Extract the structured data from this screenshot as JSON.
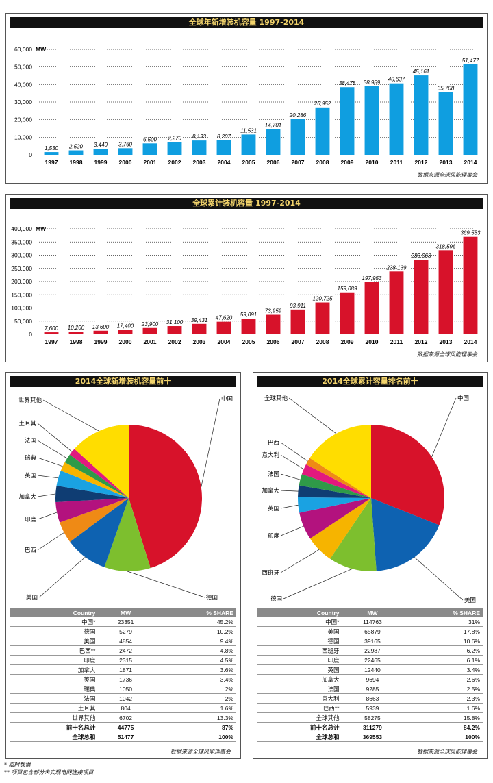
{
  "chart_data": [
    {
      "type": "bar",
      "title": "全球年新增装机容量 1997-2014",
      "ylabel": "MW",
      "ylim": [
        0,
        60000
      ],
      "yticks": [
        "0",
        "10,000",
        "20,000",
        "30,000",
        "40,000",
        "50,000",
        "60,000"
      ],
      "categories": [
        "1997",
        "1998",
        "1999",
        "2000",
        "2001",
        "2002",
        "2003",
        "2004",
        "2005",
        "2006",
        "2007",
        "2008",
        "2009",
        "2010",
        "2011",
        "2012",
        "2013",
        "2014"
      ],
      "values": [
        1530,
        2520,
        3440,
        3760,
        6500,
        7270,
        8133,
        8207,
        11531,
        14701,
        20286,
        26952,
        38478,
        38989,
        40637,
        45161,
        35708,
        51477
      ],
      "labels": [
        "1,530",
        "2,520",
        "3,440",
        "3,760",
        "6,500",
        "7,270",
        "8,133",
        "8,207",
        "11,531",
        "14,701",
        "20,286",
        "26,952",
        "38,478",
        "38,989",
        "40,637",
        "45,161",
        "35,708",
        "51,477"
      ],
      "color": "#0f9ee0",
      "grid": true,
      "source": "数据来源全球风能理事会"
    },
    {
      "type": "bar",
      "title": "全球累计装机容量 1997-2014",
      "ylabel": "MW",
      "ylim": [
        0,
        400000
      ],
      "yticks": [
        "0",
        "50,000",
        "100,000",
        "150,000",
        "200,000",
        "250,000",
        "300,000",
        "350,000",
        "400,000"
      ],
      "categories": [
        "1997",
        "1998",
        "1999",
        "2000",
        "2001",
        "2002",
        "2003",
        "2004",
        "2005",
        "2006",
        "2007",
        "2008",
        "2009",
        "2010",
        "2011",
        "2012",
        "2013",
        "2014"
      ],
      "values": [
        7600,
        10200,
        13600,
        17400,
        23900,
        31100,
        39431,
        47620,
        59091,
        73959,
        93911,
        120725,
        159089,
        197953,
        238139,
        283068,
        318596,
        369553
      ],
      "labels": [
        "7,600",
        "10,200",
        "13,600",
        "17,400",
        "23,900",
        "31,100",
        "39,431",
        "47,620",
        "59,091",
        "73,959",
        "93,911",
        "120,725",
        "159,089",
        "197,953",
        "238,139",
        "283,068",
        "318,596",
        "369,553"
      ],
      "color": "#d7122a",
      "grid": true,
      "source": "数据来源全球风能理事会"
    },
    {
      "type": "pie",
      "title": "2014全球新增装机容量前十",
      "slices": [
        {
          "label": "中国",
          "value": 45.2,
          "color": "#d7122a"
        },
        {
          "label": "德国",
          "value": 10.2,
          "color": "#7dbf2e"
        },
        {
          "label": "美国",
          "value": 9.4,
          "color": "#0e62b1"
        },
        {
          "label": "巴西",
          "value": 4.8,
          "color": "#ef8a15"
        },
        {
          "label": "印度",
          "value": 4.5,
          "color": "#b3127e"
        },
        {
          "label": "加拿大",
          "value": 3.6,
          "color": "#0f3d73"
        },
        {
          "label": "英国",
          "value": 3.4,
          "color": "#1aa2e2"
        },
        {
          "label": "瑞典",
          "value": 2.0,
          "color": "#f6b400"
        },
        {
          "label": "法国",
          "value": 2.0,
          "color": "#2f9a48"
        },
        {
          "label": "土耳其",
          "value": 1.6,
          "color": "#e2197e"
        },
        {
          "label": "世界其他",
          "value": 13.3,
          "color": "#ffdd00"
        }
      ],
      "table": {
        "headers": [
          "Country",
          "MW",
          "% SHARE"
        ],
        "rows": [
          [
            "中国*",
            "23351",
            "45.2%"
          ],
          [
            "德国",
            "5279",
            "10.2%"
          ],
          [
            "美国",
            "4854",
            "9.4%"
          ],
          [
            "巴西**",
            "2472",
            "4.8%"
          ],
          [
            "印度",
            "2315",
            "4.5%"
          ],
          [
            "加拿大",
            "1871",
            "3.6%"
          ],
          [
            "英国",
            "1736",
            "3.4%"
          ],
          [
            "瑞典",
            "1050",
            "2%"
          ],
          [
            "法国",
            "1042",
            "2%"
          ],
          [
            "土耳其",
            "804",
            "1.6%"
          ],
          [
            "世界其他",
            "6702",
            "13.3%"
          ],
          [
            "前十名总计",
            "44775",
            "87%"
          ],
          [
            "全球总和",
            "51477",
            "100%"
          ]
        ]
      },
      "source": "数据来源全球风能理事会"
    },
    {
      "type": "pie",
      "title": "2014全球累计容量排名前十",
      "slices": [
        {
          "label": "中国",
          "value": 31.0,
          "color": "#d7122a"
        },
        {
          "label": "美国",
          "value": 17.8,
          "color": "#0e62b1"
        },
        {
          "label": "德国",
          "value": 10.6,
          "color": "#7dbf2e"
        },
        {
          "label": "西班牙",
          "value": 6.2,
          "color": "#f6b400"
        },
        {
          "label": "印度",
          "value": 6.1,
          "color": "#b3127e"
        },
        {
          "label": "英国",
          "value": 3.4,
          "color": "#1aa2e2"
        },
        {
          "label": "加拿大",
          "value": 2.6,
          "color": "#0f3d73"
        },
        {
          "label": "法国",
          "value": 2.5,
          "color": "#2f9a48"
        },
        {
          "label": "意大利",
          "value": 2.3,
          "color": "#e2197e"
        },
        {
          "label": "巴西",
          "value": 1.6,
          "color": "#ef8a15"
        },
        {
          "label": "全球其他",
          "value": 15.8,
          "color": "#ffdd00"
        }
      ],
      "table": {
        "headers": [
          "Country",
          "MW",
          "% SHARE"
        ],
        "rows": [
          [
            "中国*",
            "114763",
            "31%"
          ],
          [
            "美国",
            "65879",
            "17.8%"
          ],
          [
            "德国",
            "39165",
            "10.6%"
          ],
          [
            "西班牙",
            "22987",
            "6.2%"
          ],
          [
            "印度",
            "22465",
            "6.1%"
          ],
          [
            "英国",
            "12440",
            "3.4%"
          ],
          [
            "加拿大",
            "9694",
            "2.6%"
          ],
          [
            "法国",
            "9285",
            "2.5%"
          ],
          [
            "意大利",
            "8663",
            "2.3%"
          ],
          [
            "巴西**",
            "5939",
            "1.6%"
          ],
          [
            "全球其他",
            "58275",
            "15.8%"
          ],
          [
            "前十名总计",
            "311279",
            "84.2%"
          ],
          [
            "全球总和",
            "369553",
            "100%"
          ]
        ]
      },
      "source": "数据来源全球风能理事会"
    }
  ],
  "footnotes": [
    "* 临时数据",
    "** 项目包含部分未实现电网连接项目"
  ]
}
